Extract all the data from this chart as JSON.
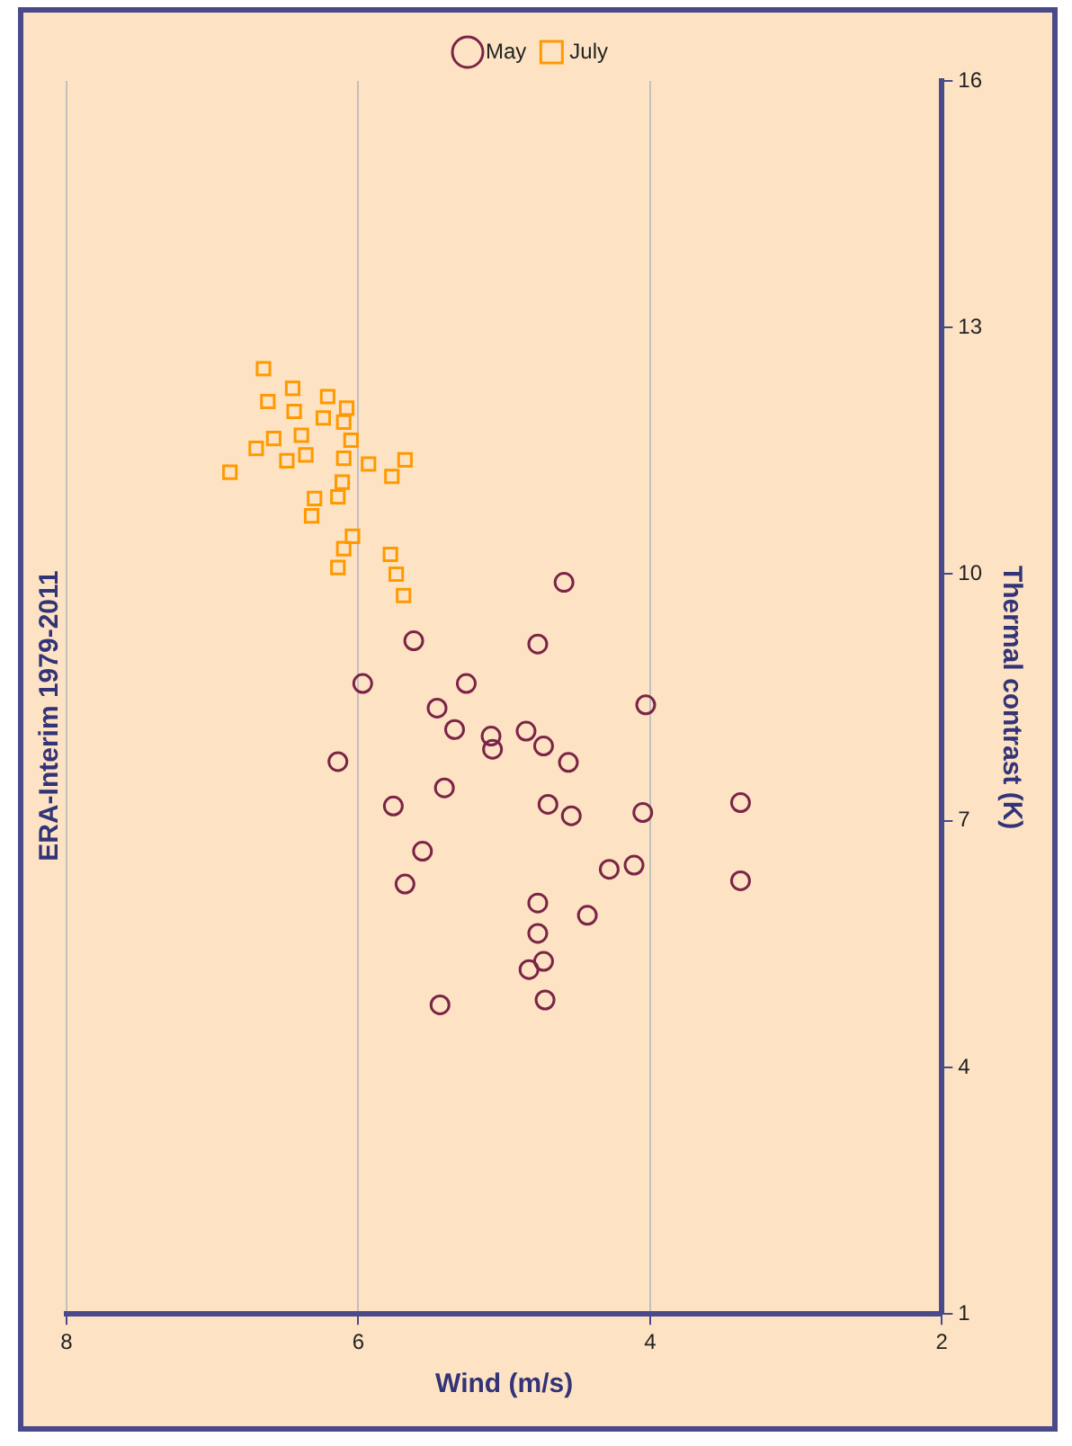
{
  "chart_data": {
    "type": "scatter",
    "title": "ERA-Interim 1979-2011",
    "xlabel": "Wind (m/s)",
    "ylabel": "Thermal contrast (K)",
    "xlim": [
      8,
      2
    ],
    "xticks": [
      8,
      6,
      4,
      2
    ],
    "ylim": [
      1,
      16
    ],
    "yticks": [
      1,
      4,
      7,
      10,
      13,
      16
    ],
    "grid": "x",
    "legend": "top",
    "series": [
      {
        "name": "May",
        "color": "#7b2546",
        "marker": "circle",
        "values": [
          9.9,
          9.19,
          9.15,
          8.67,
          8.67,
          8.41,
          8.37,
          8.11,
          8.03,
          7.87,
          8.09,
          7.91,
          7.71,
          7.72,
          7.4,
          7.18,
          7.2,
          7.06,
          7.1,
          7.22,
          6.63,
          6.23,
          6.41,
          6.46,
          6.27,
          6.0,
          5.85,
          5.63,
          5.29,
          5.19,
          4.82,
          4.76
        ],
        "x": [
          4.59,
          5.62,
          4.77,
          5.97,
          5.26,
          4.03,
          5.46,
          5.34,
          5.09,
          5.08,
          4.85,
          4.73,
          4.56,
          6.14,
          5.41,
          5.76,
          4.7,
          4.54,
          4.05,
          3.38,
          5.56,
          5.68,
          4.28,
          4.11,
          3.38,
          4.77,
          4.43,
          4.77,
          4.73,
          4.83,
          4.72,
          5.44
        ]
      },
      {
        "name": "July",
        "color": "#ff9900",
        "marker": "square",
        "values": [
          12.5,
          12.26,
          12.1,
          12.16,
          11.98,
          12.02,
          11.9,
          11.85,
          11.69,
          11.65,
          11.63,
          11.53,
          11.45,
          11.38,
          11.41,
          11.34,
          11.39,
          11.24,
          11.19,
          11.12,
          10.94,
          10.92,
          10.71,
          10.46,
          10.31,
          10.08,
          10.24,
          10.0,
          9.74
        ],
        "x": [
          6.65,
          6.45,
          6.62,
          6.21,
          6.44,
          6.08,
          6.24,
          6.1,
          6.39,
          6.58,
          6.05,
          6.7,
          6.36,
          6.49,
          6.1,
          5.93,
          5.68,
          6.88,
          5.77,
          6.11,
          6.14,
          6.3,
          6.32,
          6.04,
          6.1,
          6.14,
          5.78,
          5.74,
          5.69
        ]
      }
    ]
  }
}
